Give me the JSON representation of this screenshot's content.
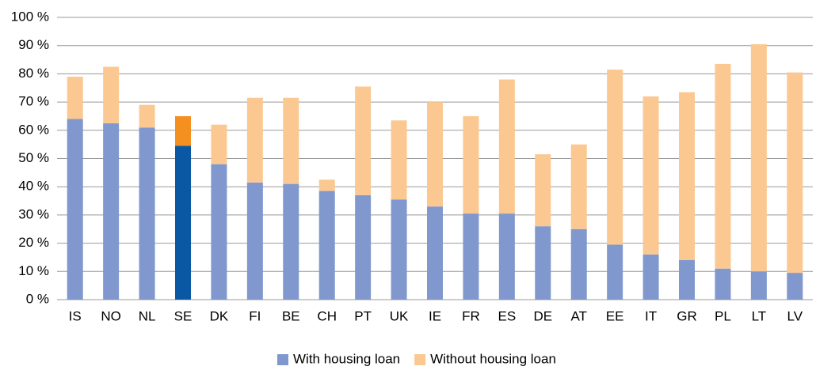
{
  "chart_data": {
    "type": "stacked_bar",
    "categories": [
      "IS",
      "NO",
      "NL",
      "SE",
      "DK",
      "FI",
      "BE",
      "CH",
      "PT",
      "UK",
      "IE",
      "FR",
      "ES",
      "DE",
      "AT",
      "EE",
      "IT",
      "GR",
      "PL",
      "LT",
      "LV"
    ],
    "series": [
      {
        "name": "With housing loan",
        "color": "#8098ce",
        "values": [
          64,
          62.5,
          61,
          54.5,
          48,
          41.5,
          41,
          38.5,
          37,
          35.5,
          33,
          30.5,
          30.5,
          26,
          25,
          19.5,
          16,
          14,
          11,
          10,
          9.5
        ]
      },
      {
        "name": "Without housing loan",
        "color": "#fbc891",
        "values": [
          15,
          20,
          8,
          10.5,
          14,
          30,
          30.5,
          4,
          38.5,
          28,
          37,
          34.5,
          47.5,
          25.5,
          30,
          62,
          56,
          59.5,
          72.5,
          80.5,
          71
        ]
      }
    ],
    "highlight": {
      "category": "SE",
      "colors": [
        "#0a58a4",
        "#f4901f"
      ]
    },
    "ylim": [
      0,
      100
    ],
    "yticks": [
      {
        "value": 0,
        "label": "0 %"
      },
      {
        "value": 10,
        "label": "10 %"
      },
      {
        "value": 20,
        "label": "20 %"
      },
      {
        "value": 30,
        "label": "30 %"
      },
      {
        "value": 40,
        "label": "40 %"
      },
      {
        "value": 50,
        "label": "50 %"
      },
      {
        "value": 60,
        "label": "60 %"
      },
      {
        "value": 70,
        "label": "70 %"
      },
      {
        "value": 80,
        "label": "80 %"
      },
      {
        "value": 90,
        "label": "90 %"
      },
      {
        "value": 100,
        "label": "100 %"
      }
    ],
    "grid": true,
    "legend": "bottom"
  }
}
